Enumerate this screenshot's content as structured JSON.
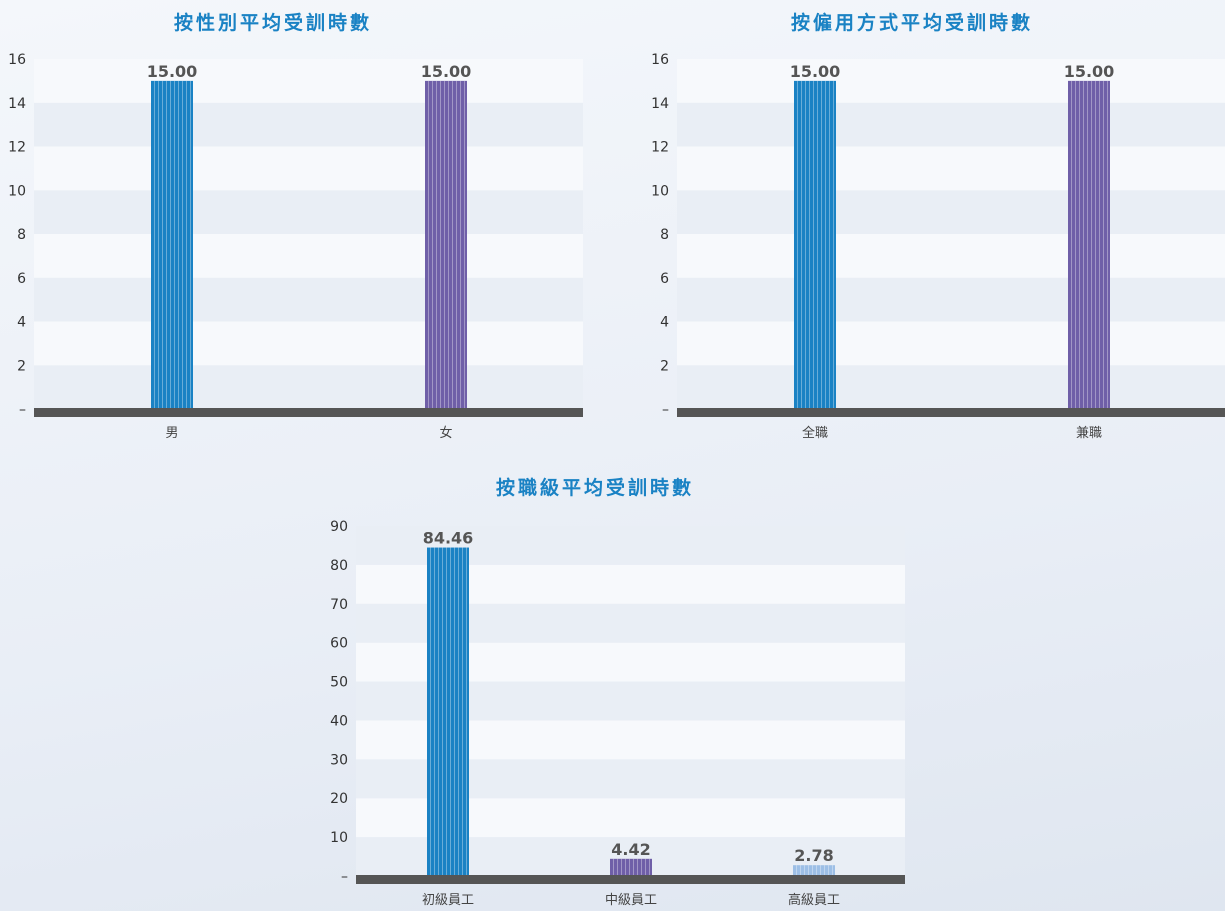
{
  "colors": {
    "blue": "#1a82c4",
    "purple": "#6f5fa8",
    "light_blue": "#9dbfe6",
    "baseline": "#555555",
    "band_light": "#f7f9fc",
    "band_dark": "#e9eef5",
    "title": "#1a82c4"
  },
  "chart_data": [
    {
      "type": "bar",
      "title": "按性別平均受訓時數",
      "categories": [
        "男",
        "女"
      ],
      "values": [
        15.0,
        15.0
      ],
      "value_labels": [
        "15.00",
        "15.00"
      ],
      "bar_colors": [
        "blue",
        "purple"
      ],
      "ylim": [
        0,
        16
      ],
      "yticks": [
        0,
        2,
        4,
        6,
        8,
        10,
        12,
        14,
        16
      ],
      "ytick_labels": [
        "–",
        "2",
        "4",
        "6",
        "8",
        "10",
        "12",
        "14",
        "16"
      ],
      "xlabel": "",
      "ylabel": "",
      "grid": "alternating horizontal bands",
      "legend": "none"
    },
    {
      "type": "bar",
      "title": "按僱用方式平均受訓時數",
      "categories": [
        "全職",
        "兼職"
      ],
      "values": [
        15.0,
        15.0
      ],
      "value_labels": [
        "15.00",
        "15.00"
      ],
      "bar_colors": [
        "blue",
        "purple"
      ],
      "ylim": [
        0,
        16
      ],
      "yticks": [
        0,
        2,
        4,
        6,
        8,
        10,
        12,
        14,
        16
      ],
      "ytick_labels": [
        "–",
        "2",
        "4",
        "6",
        "8",
        "10",
        "12",
        "14",
        "16"
      ],
      "xlabel": "",
      "ylabel": "",
      "grid": "alternating horizontal bands",
      "legend": "none"
    },
    {
      "type": "bar",
      "title": "按職級平均受訓時數",
      "categories": [
        "初級員工",
        "中級員工",
        "高級員工"
      ],
      "values": [
        84.46,
        4.42,
        2.78
      ],
      "value_labels": [
        "84.46",
        "4.42",
        "2.78"
      ],
      "bar_colors": [
        "blue",
        "purple",
        "light_blue"
      ],
      "ylim": [
        0,
        90
      ],
      "yticks": [
        0,
        10,
        20,
        30,
        40,
        50,
        60,
        70,
        80,
        90
      ],
      "ytick_labels": [
        "–",
        "10",
        "20",
        "30",
        "40",
        "50",
        "60",
        "70",
        "80",
        "90"
      ],
      "xlabel": "",
      "ylabel": "",
      "grid": "alternating horizontal bands",
      "legend": "none"
    }
  ]
}
